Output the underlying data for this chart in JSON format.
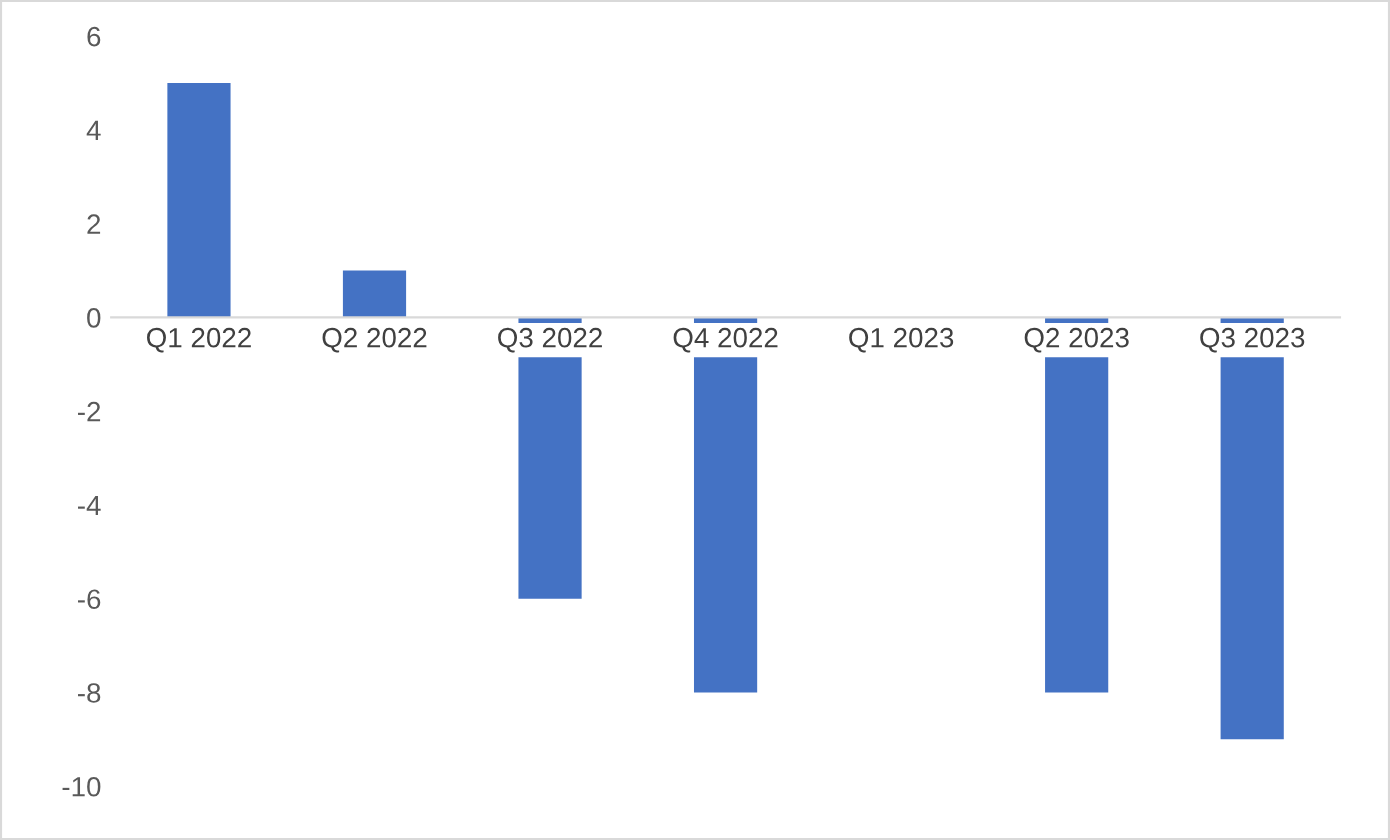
{
  "chart_data": {
    "type": "bar",
    "categories": [
      "Q1 2022",
      "Q2 2022",
      "Q3 2022",
      "Q4 2022",
      "Q1 2023",
      "Q2 2023",
      "Q3 2023"
    ],
    "values": [
      5,
      1,
      -6,
      -8,
      0,
      -8,
      -9
    ],
    "color": "#4472c4",
    "ylim": [
      -10,
      6
    ],
    "yticks": [
      -10,
      -8,
      -6,
      -4,
      -2,
      0,
      2,
      4,
      6
    ],
    "grid": false,
    "legend": false
  }
}
